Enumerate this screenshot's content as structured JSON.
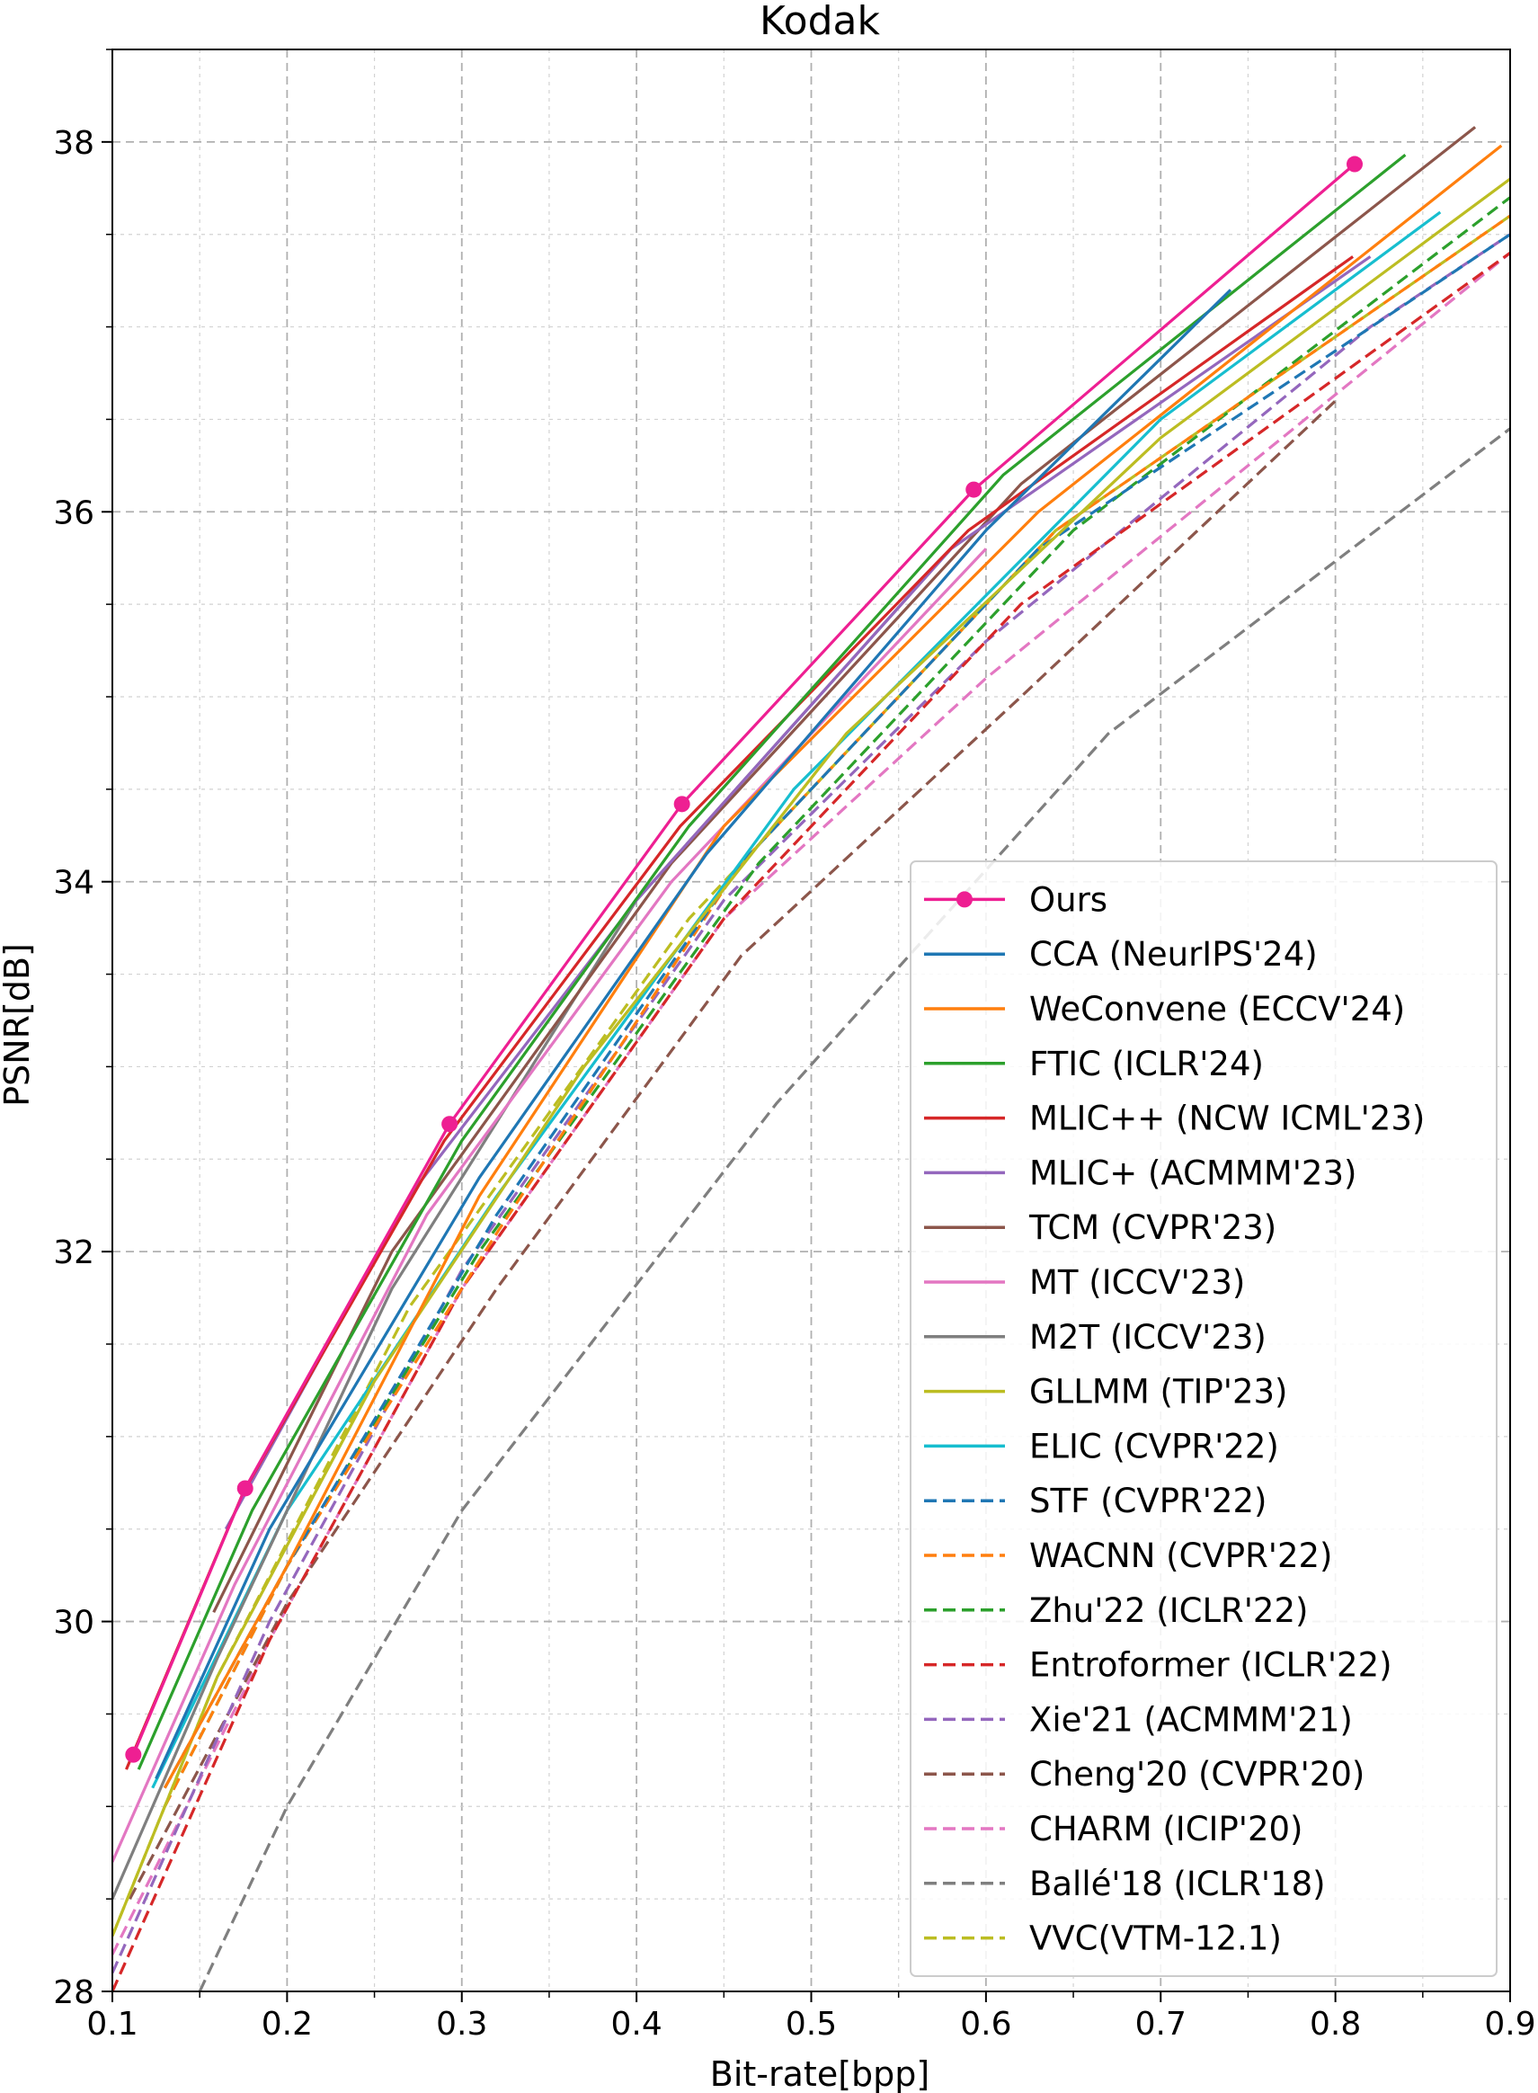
{
  "chart_data": {
    "type": "line",
    "title": "Kodak",
    "xlabel": "Bit-rate[bpp]",
    "ylabel": "PSNR[dB]",
    "xlim": [
      0.1,
      0.9
    ],
    "ylim": [
      28,
      38.5
    ],
    "xticks": [
      "0.1",
      "0.2",
      "0.3",
      "0.4",
      "0.5",
      "0.6",
      "0.7",
      "0.8",
      "0.9"
    ],
    "xtick_values": [
      0.1,
      0.2,
      0.3,
      0.4,
      0.5,
      0.6,
      0.7,
      0.8,
      0.9
    ],
    "yticks": [
      "28",
      "30",
      "32",
      "34",
      "36",
      "38"
    ],
    "ytick_values": [
      28,
      30,
      32,
      34,
      36,
      38
    ],
    "grid": true,
    "legend_position": "lower-right",
    "series": [
      {
        "name": "Ours",
        "color": "#ee1f92",
        "dash": "solid",
        "markers": true,
        "x": [
          0.112,
          0.176,
          0.293,
          0.426,
          0.593,
          0.811
        ],
        "y": [
          29.28,
          30.72,
          32.69,
          34.42,
          36.12,
          37.88
        ]
      },
      {
        "name": "CCA (NeurIPS'24)",
        "color": "#1f77b4",
        "dash": "solid",
        "markers": false,
        "x": [
          0.125,
          0.19,
          0.31,
          0.44,
          0.6,
          0.74
        ],
        "y": [
          29.15,
          30.5,
          32.4,
          34.15,
          35.9,
          37.2
        ]
      },
      {
        "name": "WeConvene (ECCV'24)",
        "color": "#ff7f0e",
        "dash": "solid",
        "markers": false,
        "x": [
          0.13,
          0.2,
          0.31,
          0.45,
          0.63,
          0.895
        ],
        "y": [
          29.1,
          30.3,
          32.3,
          34.3,
          36.0,
          37.98
        ]
      },
      {
        "name": "FTIC (ICLR'24)",
        "color": "#2ca02c",
        "dash": "solid",
        "markers": false,
        "x": [
          0.115,
          0.18,
          0.3,
          0.43,
          0.61,
          0.84
        ],
        "y": [
          29.2,
          30.6,
          32.6,
          34.3,
          36.2,
          37.93
        ]
      },
      {
        "name": "MLIC++ (NCW ICML'23)",
        "color": "#d62728",
        "dash": "solid",
        "markers": false,
        "x": [
          0.108,
          0.175,
          0.29,
          0.425,
          0.59,
          0.81
        ],
        "y": [
          29.2,
          30.7,
          32.6,
          34.3,
          35.9,
          37.38
        ]
      },
      {
        "name": "MLIC+ (ACMMM'23)",
        "color": "#9467bd",
        "dash": "solid",
        "markers": false,
        "x": [
          0.165,
          0.27,
          0.4,
          0.58,
          0.82
        ],
        "y": [
          30.5,
          32.3,
          33.9,
          35.8,
          37.38
        ]
      },
      {
        "name": "TCM (CVPR'23)",
        "color": "#8c564b",
        "dash": "solid",
        "markers": false,
        "x": [
          0.158,
          0.26,
          0.42,
          0.62,
          0.88
        ],
        "y": [
          30.05,
          32.0,
          34.1,
          36.15,
          38.08
        ]
      },
      {
        "name": "MT (ICCV'23)",
        "color": "#e377c2",
        "dash": "solid",
        "markers": false,
        "x": [
          0.1,
          0.17,
          0.28,
          0.42,
          0.6
        ],
        "y": [
          28.7,
          30.2,
          32.2,
          34.0,
          35.8
        ]
      },
      {
        "name": "M2T (ICCV'23)",
        "color": "#7f7f7f",
        "dash": "solid",
        "markers": false,
        "x": [
          0.1,
          0.16,
          0.26,
          0.4,
          0.58
        ],
        "y": [
          28.5,
          29.8,
          31.8,
          33.9,
          35.8
        ]
      },
      {
        "name": "GLLMM (TIP'23)",
        "color": "#bcbd22",
        "dash": "solid",
        "markers": false,
        "x": [
          0.1,
          0.16,
          0.25,
          0.37,
          0.52,
          0.7,
          0.9
        ],
        "y": [
          28.3,
          29.7,
          31.3,
          33.0,
          34.8,
          36.4,
          37.8
        ]
      },
      {
        "name": "ELIC (CVPR'22)",
        "color": "#17becf",
        "dash": "solid",
        "markers": false,
        "x": [
          0.123,
          0.2,
          0.32,
          0.49,
          0.7,
          0.86
        ],
        "y": [
          29.1,
          30.6,
          32.3,
          34.5,
          36.5,
          37.62
        ]
      },
      {
        "name": "STF (CVPR'22)",
        "color": "#1f77b4",
        "dash": "dashed",
        "markers": false,
        "x": [
          0.13,
          0.2,
          0.32,
          0.46,
          0.63,
          0.9
        ],
        "y": [
          29.1,
          30.3,
          32.2,
          34.1,
          35.8,
          37.5
        ]
      },
      {
        "name": "WACNN (CVPR'22)",
        "color": "#ff7f0e",
        "dash": "dashed",
        "markers": false,
        "x": [
          0.13,
          0.2,
          0.32,
          0.46,
          0.64,
          0.9
        ],
        "y": [
          29.0,
          30.3,
          32.1,
          34.1,
          35.9,
          37.6
        ]
      },
      {
        "name": "Zhu'22 (ICLR'22)",
        "color": "#2ca02c",
        "dash": "dashed",
        "markers": false,
        "x": [
          0.13,
          0.2,
          0.31,
          0.47,
          0.65,
          0.9
        ],
        "y": [
          29.0,
          30.3,
          32.0,
          34.1,
          35.9,
          37.7
        ]
      },
      {
        "name": "Entroformer (ICLR'22)",
        "color": "#d62728",
        "dash": "dashed",
        "markers": false,
        "x": [
          0.1,
          0.19,
          0.3,
          0.45,
          0.62,
          0.9
        ],
        "y": [
          28.0,
          29.9,
          31.8,
          33.8,
          35.5,
          37.4
        ]
      },
      {
        "name": "Xie'21 (ACMMM'21)",
        "color": "#9467bd",
        "dash": "dashed",
        "markers": false,
        "x": [
          0.1,
          0.19,
          0.3,
          0.45,
          0.6,
          0.82,
          0.9
        ],
        "y": [
          28.1,
          30.0,
          31.9,
          33.9,
          35.3,
          37.0,
          37.5
        ]
      },
      {
        "name": "Cheng'20 (CVPR'20)",
        "color": "#8c564b",
        "dash": "dashed",
        "markers": false,
        "x": [
          0.11,
          0.2,
          0.32,
          0.46,
          0.62,
          0.8
        ],
        "y": [
          28.5,
          30.1,
          31.8,
          33.6,
          35.0,
          36.6
        ]
      },
      {
        "name": "CHARM (ICIP'20)",
        "color": "#e377c2",
        "dash": "dashed",
        "markers": false,
        "x": [
          0.1,
          0.19,
          0.3,
          0.45,
          0.6,
          0.9
        ],
        "y": [
          28.2,
          29.9,
          31.8,
          33.8,
          35.1,
          37.4
        ]
      },
      {
        "name": "Ballé'18 (ICLR'18)",
        "color": "#7f7f7f",
        "dash": "dashed",
        "markers": false,
        "x": [
          0.15,
          0.2,
          0.3,
          0.48,
          0.67,
          0.9
        ],
        "y": [
          28.0,
          29.0,
          30.6,
          32.8,
          34.8,
          36.45
        ]
      },
      {
        "name": "VVC(VTM-12.1)",
        "color": "#bcbd22",
        "dash": "dashed",
        "markers": false,
        "x": [
          0.1,
          0.16,
          0.27,
          0.43,
          0.64,
          0.9
        ],
        "y": [
          28.3,
          29.7,
          31.7,
          33.8,
          35.9,
          37.6
        ]
      }
    ]
  }
}
